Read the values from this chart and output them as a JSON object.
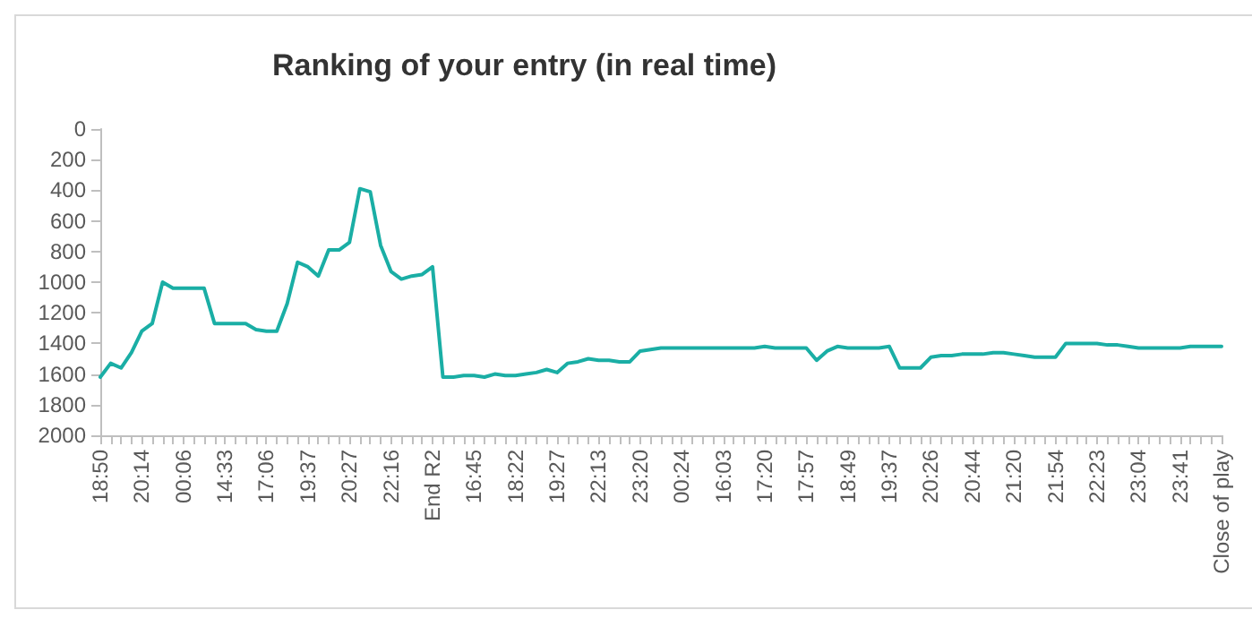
{
  "chart_data": {
    "type": "line",
    "title": "Ranking of your entry (in real time)",
    "categories": [
      "18:50",
      null,
      null,
      null,
      "20:14",
      null,
      null,
      null,
      "00:06",
      null,
      null,
      null,
      "14:33",
      null,
      null,
      null,
      "17:06",
      null,
      null,
      null,
      "19:37",
      null,
      null,
      null,
      "20:27",
      null,
      null,
      null,
      "22:16",
      null,
      null,
      null,
      "End R2",
      null,
      null,
      null,
      "16:45",
      null,
      null,
      null,
      "18:22",
      null,
      null,
      null,
      "19:27",
      null,
      null,
      null,
      "22:13",
      null,
      null,
      null,
      "23:20",
      null,
      null,
      null,
      "00:24",
      null,
      null,
      null,
      "16:03",
      null,
      null,
      null,
      "17:20",
      null,
      null,
      null,
      "17:57",
      null,
      null,
      null,
      "18:49",
      null,
      null,
      null,
      "19:37",
      null,
      null,
      null,
      "20:26",
      null,
      null,
      null,
      "20:44",
      null,
      null,
      null,
      "21:20",
      null,
      null,
      null,
      "21:54",
      null,
      null,
      null,
      "22:23",
      null,
      null,
      null,
      "23:04",
      null,
      null,
      null,
      "23:41",
      null,
      null,
      null,
      "Close of play"
    ],
    "series": [
      {
        "color": "#1aaea5",
        "values": [
          1620,
          1530,
          1560,
          1460,
          1320,
          1270,
          1000,
          1040,
          1040,
          1040,
          1040,
          1270,
          1270,
          1270,
          1270,
          1310,
          1320,
          1320,
          1140,
          870,
          900,
          960,
          790,
          790,
          740,
          390,
          410,
          760,
          930,
          980,
          960,
          950,
          900,
          1620,
          1620,
          1610,
          1610,
          1620,
          1600,
          1610,
          1610,
          1600,
          1590,
          1570,
          1590,
          1530,
          1520,
          1500,
          1510,
          1510,
          1520,
          1520,
          1450,
          1440,
          1430,
          1430,
          1430,
          1430,
          1430,
          1430,
          1430,
          1430,
          1430,
          1430,
          1420,
          1430,
          1430,
          1430,
          1430,
          1510,
          1450,
          1420,
          1430,
          1430,
          1430,
          1430,
          1420,
          1560,
          1560,
          1560,
          1490,
          1480,
          1480,
          1470,
          1470,
          1470,
          1460,
          1460,
          1470,
          1480,
          1490,
          1490,
          1490,
          1400,
          1400,
          1400,
          1400,
          1410,
          1410,
          1420,
          1430,
          1430,
          1430,
          1430,
          1430,
          1420,
          1420,
          1420,
          1420
        ]
      }
    ],
    "ylim": [
      2000,
      0
    ],
    "yticks": [
      0,
      200,
      400,
      600,
      800,
      1000,
      1200,
      1400,
      1600,
      1800,
      2000
    ],
    "grid": false
  }
}
